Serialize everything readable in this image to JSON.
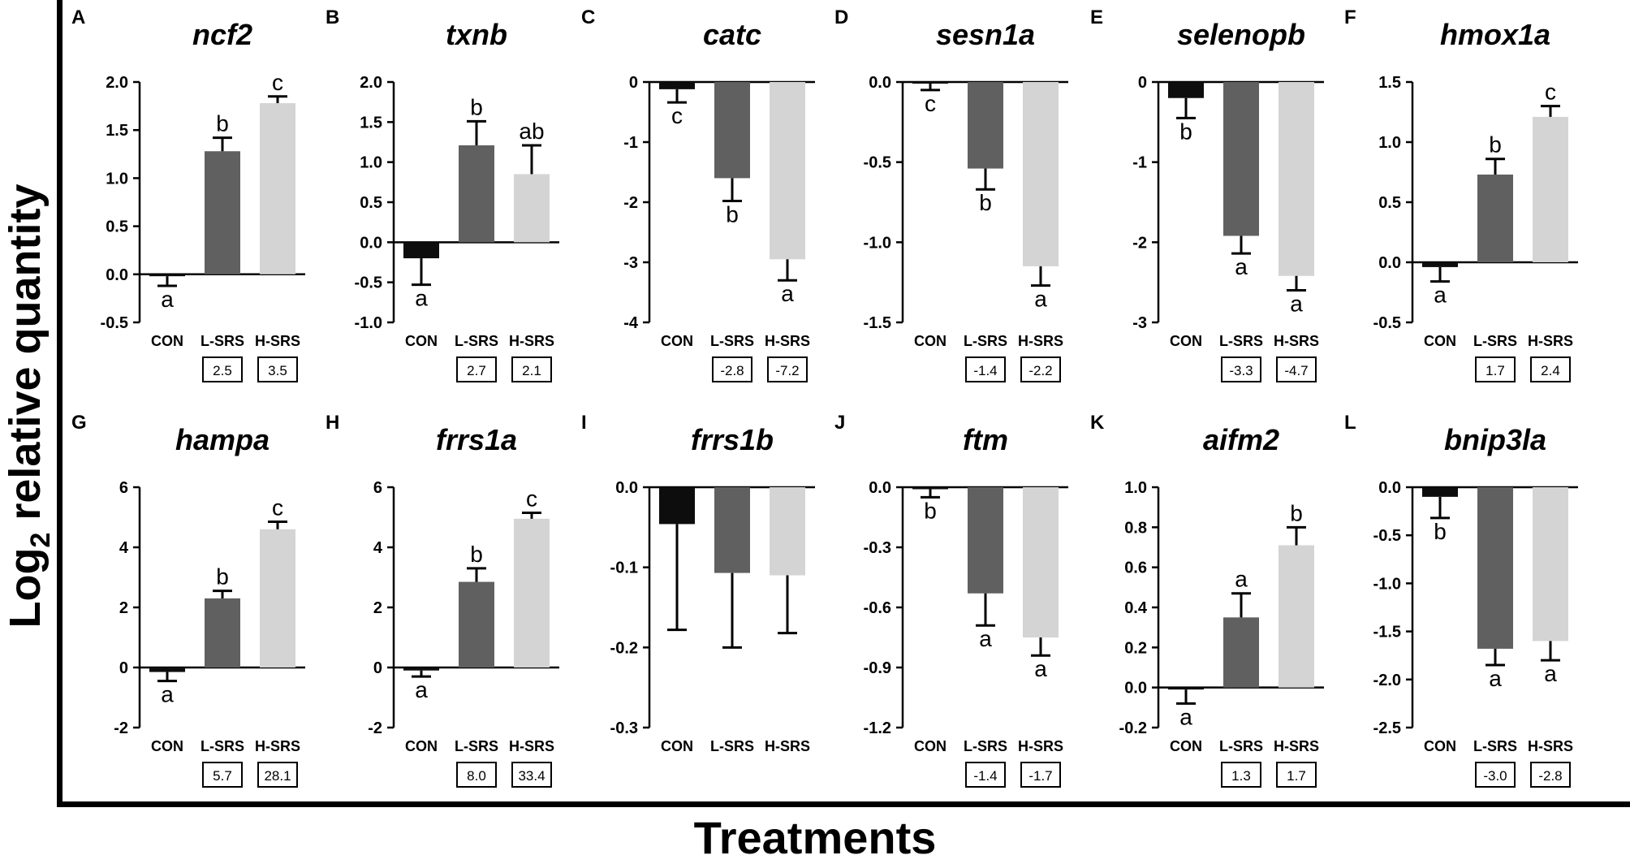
{
  "figure": {
    "ylabel_main": "Log",
    "ylabel_sub": "2",
    "ylabel_rest": " relative quantity",
    "xlabel": "Treatments",
    "categories": [
      "CON",
      "L-SRS",
      "H-SRS"
    ],
    "colors": {
      "CON": "#0d0d0d",
      "L-SRS": "#606060",
      "H-SRS": "#d4d4d4"
    }
  },
  "chart_data": [
    {
      "type": "bar",
      "panel": "A",
      "title": "ncf2",
      "categories": [
        "CON",
        "L-SRS",
        "H-SRS"
      ],
      "values": [
        -0.02,
        1.28,
        1.78
      ],
      "errors": [
        0.1,
        0.14,
        0.07
      ],
      "letters": [
        "a",
        "b",
        "c"
      ],
      "fold_changes": [
        "",
        "2.5",
        "3.5"
      ],
      "ylim": [
        -0.5,
        2.0
      ],
      "yticks": [
        "2.0",
        "1.5",
        "1.0",
        "0.5",
        "0.0",
        "-0.5"
      ]
    },
    {
      "type": "bar",
      "panel": "B",
      "title": "txnb",
      "categories": [
        "CON",
        "L-SRS",
        "H-SRS"
      ],
      "values": [
        -0.2,
        1.21,
        0.85
      ],
      "errors": [
        0.33,
        0.3,
        0.36
      ],
      "letters": [
        "a",
        "b",
        "ab"
      ],
      "fold_changes": [
        "",
        "2.7",
        "2.1"
      ],
      "ylim": [
        -1.0,
        2.0
      ],
      "yticks": [
        "2.0",
        "1.5",
        "1.0",
        "0.5",
        "0.0",
        "-0.5",
        "-1.0"
      ]
    },
    {
      "type": "bar",
      "panel": "C",
      "title": "catc",
      "categories": [
        "CON",
        "L-SRS",
        "H-SRS"
      ],
      "values": [
        -0.12,
        -1.6,
        -2.95
      ],
      "errors": [
        0.22,
        0.38,
        0.35
      ],
      "letters": [
        "c",
        "b",
        "a"
      ],
      "fold_changes": [
        "",
        "-2.8",
        "-7.2"
      ],
      "ylim": [
        -4,
        0
      ],
      "yticks": [
        "0",
        "-1",
        "-2",
        "-3",
        "-4"
      ]
    },
    {
      "type": "bar",
      "panel": "D",
      "title": "sesn1a",
      "categories": [
        "CON",
        "L-SRS",
        "H-SRS"
      ],
      "values": [
        -0.01,
        -0.54,
        -1.15
      ],
      "errors": [
        0.04,
        0.13,
        0.12
      ],
      "letters": [
        "c",
        "b",
        "a"
      ],
      "fold_changes": [
        "",
        "-1.4",
        "-2.2"
      ],
      "ylim": [
        -1.5,
        0.0
      ],
      "yticks": [
        "0.0",
        "-0.5",
        "-1.0",
        "-1.5"
      ]
    },
    {
      "type": "bar",
      "panel": "E",
      "title": "selenopb",
      "categories": [
        "CON",
        "L-SRS",
        "H-SRS"
      ],
      "values": [
        -0.2,
        -1.92,
        -2.42
      ],
      "errors": [
        0.25,
        0.22,
        0.18
      ],
      "letters": [
        "b",
        "a",
        "a"
      ],
      "fold_changes": [
        "",
        "-3.3",
        "-4.7"
      ],
      "ylim": [
        -3,
        0
      ],
      "yticks": [
        "0",
        "-1",
        "-2",
        "-3"
      ]
    },
    {
      "type": "bar",
      "panel": "F",
      "title": "hmox1a",
      "categories": [
        "CON",
        "L-SRS",
        "H-SRS"
      ],
      "values": [
        -0.04,
        0.73,
        1.21
      ],
      "errors": [
        0.12,
        0.13,
        0.09
      ],
      "letters": [
        "a",
        "b",
        "c"
      ],
      "fold_changes": [
        "",
        "1.7",
        "2.4"
      ],
      "ylim": [
        -0.5,
        1.5
      ],
      "yticks": [
        "1.5",
        "1.0",
        "0.5",
        "0.0",
        "-0.5"
      ]
    },
    {
      "type": "bar",
      "panel": "G",
      "title": "hampa",
      "categories": [
        "CON",
        "L-SRS",
        "H-SRS"
      ],
      "values": [
        -0.15,
        2.3,
        4.6
      ],
      "errors": [
        0.3,
        0.25,
        0.25
      ],
      "letters": [
        "a",
        "b",
        "c"
      ],
      "fold_changes": [
        "",
        "5.7",
        "28.1"
      ],
      "ylim": [
        -2,
        6
      ],
      "yticks": [
        "6",
        "4",
        "2",
        "0",
        "-2"
      ]
    },
    {
      "type": "bar",
      "panel": "H",
      "title": "frrs1a",
      "categories": [
        "CON",
        "L-SRS",
        "H-SRS"
      ],
      "values": [
        -0.1,
        2.85,
        4.95
      ],
      "errors": [
        0.2,
        0.45,
        0.2
      ],
      "letters": [
        "a",
        "b",
        "c"
      ],
      "fold_changes": [
        "",
        "8.0",
        "33.4"
      ],
      "ylim": [
        -2,
        6
      ],
      "yticks": [
        "6",
        "4",
        "2",
        "0",
        "-2"
      ]
    },
    {
      "type": "bar",
      "panel": "I",
      "title": "frrs1b",
      "categories": [
        "CON",
        "L-SRS",
        "H-SRS"
      ],
      "values": [
        -0.046,
        -0.107,
        -0.11
      ],
      "errors": [
        0.132,
        0.093,
        0.072
      ],
      "letters": [
        "",
        "",
        ""
      ],
      "fold_changes": [
        "",
        "",
        ""
      ],
      "ylim": [
        -0.3,
        0.0
      ],
      "yticks": [
        "0.0",
        "-0.1",
        "-0.2",
        "-0.3"
      ]
    },
    {
      "type": "bar",
      "panel": "J",
      "title": "ftm",
      "categories": [
        "CON",
        "L-SRS",
        "H-SRS"
      ],
      "values": [
        -0.01,
        -0.53,
        -0.75
      ],
      "errors": [
        0.04,
        0.16,
        0.09
      ],
      "letters": [
        "b",
        "a",
        "a"
      ],
      "fold_changes": [
        "",
        "-1.4",
        "-1.7"
      ],
      "ylim": [
        -1.2,
        0.0
      ],
      "yticks": [
        "0.0",
        "-0.3",
        "-0.6",
        "-0.9",
        "-1.2"
      ]
    },
    {
      "type": "bar",
      "panel": "K",
      "title": "aifm2",
      "categories": [
        "CON",
        "L-SRS",
        "H-SRS"
      ],
      "values": [
        -0.01,
        0.35,
        0.71
      ],
      "errors": [
        0.07,
        0.12,
        0.09
      ],
      "letters": [
        "a",
        "a",
        "b"
      ],
      "fold_changes": [
        "",
        "1.3",
        "1.7"
      ],
      "ylim": [
        -0.2,
        1.0
      ],
      "yticks": [
        "1.0",
        "0.8",
        "0.6",
        "0.4",
        "0.2",
        "0.0",
        "-0.2"
      ]
    },
    {
      "type": "bar",
      "panel": "L",
      "title": "bnip3la",
      "categories": [
        "CON",
        "L-SRS",
        "H-SRS"
      ],
      "values": [
        -0.1,
        -1.68,
        -1.6
      ],
      "errors": [
        0.22,
        0.17,
        0.2
      ],
      "letters": [
        "b",
        "a",
        "a"
      ],
      "fold_changes": [
        "",
        "-3.0",
        "-2.8"
      ],
      "ylim": [
        -2.5,
        0.0
      ],
      "yticks": [
        "0.0",
        "-0.5",
        "-1.0",
        "-1.5",
        "-2.0",
        "-2.5"
      ]
    }
  ]
}
